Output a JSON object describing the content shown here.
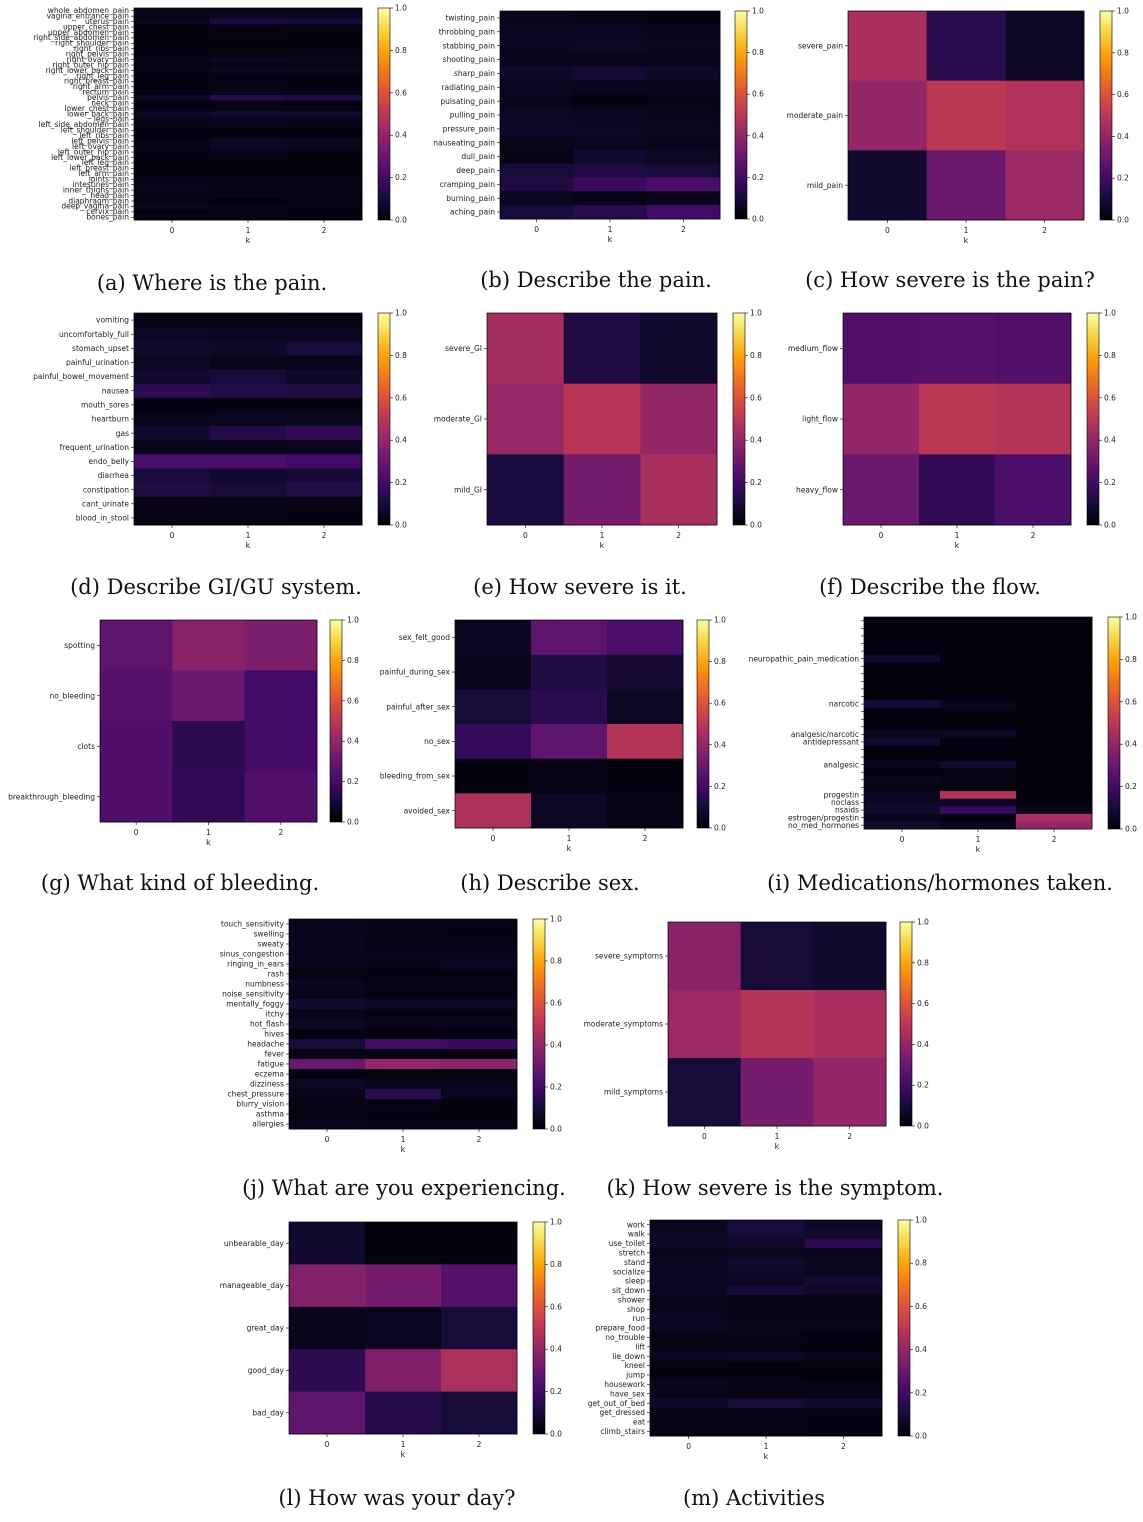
{
  "colormap": "inferno",
  "chart_data": [
    {
      "type": "heatmap",
      "caption": "(a) Where is the pain.",
      "xlabel": "k",
      "categories": [
        "0",
        "1",
        "2"
      ],
      "rows": [
        "whole_abdomen_pain",
        "vagina_entrance_pain",
        "uterus_pain",
        "upper_chest_pain",
        "upper_abdomen_pain",
        "right_side_abdomen_pain",
        "right_shoulder_pain",
        "right_ribs_pain",
        "right_pelvis_pain",
        "right_ovary_pain",
        "right_outer_hip_pain",
        "right_lower_back_pain",
        "right_leg_pain",
        "right_breast_pain",
        "right_arm_pain",
        "rectum_pain",
        "pelvis_pain",
        "neck_pain",
        "lower_chest_pain",
        "lower_back_pain",
        "legs_pain",
        "left_side_abdomen_pain",
        "left_shoulder_pain",
        "left_ribs_pain",
        "left_pelvis_pain",
        "left_ovary_pain",
        "left_outer_hip_pain",
        "left_lower_back_pain",
        "left_leg_pain",
        "left_breast_pain",
        "left_arm_pain",
        "joints_pain",
        "intestines_pain",
        "inner_thighs_pain",
        "head_pain",
        "diaphragm_pain",
        "deep_vagina_pain",
        "cervix_pain",
        "bones_pain"
      ],
      "values": [
        [
          0.04,
          0.04,
          0.03
        ],
        [
          0.03,
          0.06,
          0.05
        ],
        [
          0.05,
          0.12,
          0.1
        ],
        [
          0.02,
          0.03,
          0.02
        ],
        [
          0.02,
          0.03,
          0.02
        ],
        [
          0.02,
          0.02,
          0.02
        ],
        [
          0.02,
          0.02,
          0.02
        ],
        [
          0.02,
          0.02,
          0.02
        ],
        [
          0.02,
          0.03,
          0.03
        ],
        [
          0.03,
          0.05,
          0.04
        ],
        [
          0.02,
          0.03,
          0.03
        ],
        [
          0.03,
          0.05,
          0.05
        ],
        [
          0.02,
          0.03,
          0.02
        ],
        [
          0.02,
          0.03,
          0.02
        ],
        [
          0.02,
          0.02,
          0.02
        ],
        [
          0.03,
          0.04,
          0.03
        ],
        [
          0.06,
          0.14,
          0.12
        ],
        [
          0.02,
          0.03,
          0.02
        ],
        [
          0.03,
          0.03,
          0.03
        ],
        [
          0.06,
          0.09,
          0.08
        ],
        [
          0.04,
          0.04,
          0.04
        ],
        [
          0.03,
          0.04,
          0.03
        ],
        [
          0.02,
          0.02,
          0.02
        ],
        [
          0.02,
          0.02,
          0.02
        ],
        [
          0.04,
          0.06,
          0.05
        ],
        [
          0.03,
          0.06,
          0.05
        ],
        [
          0.02,
          0.03,
          0.02
        ],
        [
          0.02,
          0.03,
          0.02
        ],
        [
          0.02,
          0.02,
          0.02
        ],
        [
          0.02,
          0.02,
          0.02
        ],
        [
          0.02,
          0.02,
          0.02
        ],
        [
          0.03,
          0.03,
          0.03
        ],
        [
          0.04,
          0.03,
          0.03
        ],
        [
          0.04,
          0.03,
          0.02
        ],
        [
          0.03,
          0.04,
          0.03
        ],
        [
          0.02,
          0.02,
          0.02
        ],
        [
          0.05,
          0.04,
          0.03
        ],
        [
          0.02,
          0.03,
          0.02
        ],
        [
          0.03,
          0.03,
          0.02
        ]
      ]
    },
    {
      "type": "heatmap",
      "caption": "(b) Describe the pain.",
      "xlabel": "k",
      "categories": [
        "0",
        "1",
        "2"
      ],
      "rows": [
        "twisting_pain",
        "throbbing_pain",
        "stabbing_pain",
        "shooting_pain",
        "sharp_pain",
        "radiating_pain",
        "pulsating_pain",
        "pulling_pain",
        "pressure_pain",
        "nauseating_pain",
        "dull_pain",
        "deep_pain",
        "cramping_pain",
        "burning_pain",
        "aching_pain"
      ],
      "values": [
        [
          0.04,
          0.03,
          0.02
        ],
        [
          0.06,
          0.05,
          0.04
        ],
        [
          0.05,
          0.06,
          0.05
        ],
        [
          0.04,
          0.04,
          0.04
        ],
        [
          0.07,
          0.09,
          0.07
        ],
        [
          0.05,
          0.04,
          0.04
        ],
        [
          0.04,
          0.02,
          0.03
        ],
        [
          0.06,
          0.05,
          0.04
        ],
        [
          0.07,
          0.06,
          0.05
        ],
        [
          0.04,
          0.05,
          0.04
        ],
        [
          0.03,
          0.08,
          0.06
        ],
        [
          0.1,
          0.12,
          0.1
        ],
        [
          0.12,
          0.18,
          0.22
        ],
        [
          0.05,
          0.03,
          0.04
        ],
        [
          0.1,
          0.14,
          0.2
        ]
      ]
    },
    {
      "type": "heatmap",
      "caption": "(c) How severe is the pain?",
      "xlabel": "k",
      "categories": [
        "0",
        "1",
        "2"
      ],
      "rows": [
        "severe_pain",
        "moderate_pain",
        "mild_pain"
      ],
      "values": [
        [
          0.45,
          0.14,
          0.06
        ],
        [
          0.4,
          0.5,
          0.47
        ],
        [
          0.08,
          0.3,
          0.42
        ]
      ]
    },
    {
      "type": "heatmap",
      "caption": "(d) Describe GI/GU system.",
      "xlabel": "k",
      "categories": [
        "0",
        "1",
        "2"
      ],
      "rows": [
        "vomiting",
        "uncomfortably_full",
        "stomach_upset",
        "painful_urination",
        "painful_bowel_movement",
        "nausea",
        "mouth_sores",
        "heartburn",
        "gas",
        "frequent_urination",
        "endo_belly",
        "diarrhea",
        "constipation",
        "cant_urinate",
        "blood_in_stool"
      ],
      "values": [
        [
          0.03,
          0.03,
          0.02
        ],
        [
          0.06,
          0.05,
          0.05
        ],
        [
          0.08,
          0.07,
          0.1
        ],
        [
          0.06,
          0.04,
          0.04
        ],
        [
          0.08,
          0.1,
          0.07
        ],
        [
          0.15,
          0.13,
          0.12
        ],
        [
          0.02,
          0.02,
          0.02
        ],
        [
          0.04,
          0.05,
          0.05
        ],
        [
          0.08,
          0.13,
          0.16
        ],
        [
          0.04,
          0.04,
          0.05
        ],
        [
          0.22,
          0.22,
          0.2
        ],
        [
          0.1,
          0.08,
          0.09
        ],
        [
          0.12,
          0.1,
          0.13
        ],
        [
          0.03,
          0.03,
          0.03
        ],
        [
          0.03,
          0.03,
          0.02
        ]
      ]
    },
    {
      "type": "heatmap",
      "caption": "(e) How severe is it.",
      "xlabel": "k",
      "categories": [
        "0",
        "1",
        "2"
      ],
      "rows": [
        "severe_GI",
        "moderate_GI",
        "mild_GI"
      ],
      "values": [
        [
          0.44,
          0.12,
          0.08
        ],
        [
          0.41,
          0.49,
          0.4
        ],
        [
          0.11,
          0.33,
          0.45
        ]
      ]
    },
    {
      "type": "heatmap",
      "caption": "(f) Describe the flow.",
      "xlabel": "k",
      "categories": [
        "0",
        "1",
        "2"
      ],
      "rows": [
        "medium_flow",
        "light_flow",
        "heavy_flow"
      ],
      "values": [
        [
          0.24,
          0.25,
          0.24
        ],
        [
          0.4,
          0.5,
          0.48
        ],
        [
          0.3,
          0.16,
          0.22
        ]
      ]
    },
    {
      "type": "heatmap",
      "caption": "(g) What kind of bleeding.",
      "xlabel": "k",
      "categories": [
        "0",
        "1",
        "2"
      ],
      "rows": [
        "spotting",
        "no_bleeding",
        "clots",
        "breakthrough_bleeding"
      ],
      "values": [
        [
          0.27,
          0.37,
          0.34
        ],
        [
          0.25,
          0.3,
          0.2
        ],
        [
          0.23,
          0.15,
          0.21
        ],
        [
          0.23,
          0.16,
          0.24
        ]
      ]
    },
    {
      "type": "heatmap",
      "caption": "(h) Describe sex.",
      "xlabel": "k",
      "categories": [
        "0",
        "1",
        "2"
      ],
      "rows": [
        "sex_felt_good",
        "painful_during_sex",
        "painful_after_sex",
        "no_sex",
        "bleeding_from_sex",
        "avoided_sex"
      ],
      "values": [
        [
          0.05,
          0.27,
          0.22
        ],
        [
          0.04,
          0.12,
          0.09
        ],
        [
          0.1,
          0.14,
          0.06
        ],
        [
          0.17,
          0.27,
          0.48
        ],
        [
          0.02,
          0.03,
          0.02
        ],
        [
          0.46,
          0.06,
          0.03
        ]
      ]
    },
    {
      "type": "heatmap",
      "caption": "(i) Medications/hormones taken.",
      "xlabel": "k",
      "categories": [
        "0",
        "1",
        "2"
      ],
      "rows": [
        "",
        "",
        "",
        "",
        "",
        "neuropathic_pain_medication",
        "",
        "",
        "",
        "",
        "",
        "narcotic",
        "",
        "",
        "",
        "analgesic/narcotic",
        "antidepressant",
        "",
        "",
        "analgesic",
        "",
        "",
        "",
        "progestin",
        "noclass",
        "nsaids",
        "estrogen/progestin",
        "no_med_hormones"
      ],
      "values": [
        [
          0.02,
          0.02,
          0.01
        ],
        [
          0.02,
          0.02,
          0.01
        ],
        [
          0.02,
          0.02,
          0.01
        ],
        [
          0.02,
          0.02,
          0.01
        ],
        [
          0.02,
          0.02,
          0.01
        ],
        [
          0.08,
          0.02,
          0.02
        ],
        [
          0.02,
          0.02,
          0.01
        ],
        [
          0.02,
          0.02,
          0.01
        ],
        [
          0.02,
          0.02,
          0.01
        ],
        [
          0.02,
          0.02,
          0.01
        ],
        [
          0.02,
          0.02,
          0.01
        ],
        [
          0.1,
          0.05,
          0.02
        ],
        [
          0.02,
          0.02,
          0.01
        ],
        [
          0.02,
          0.02,
          0.01
        ],
        [
          0.02,
          0.02,
          0.01
        ],
        [
          0.05,
          0.06,
          0.02
        ],
        [
          0.08,
          0.02,
          0.02
        ],
        [
          0.02,
          0.02,
          0.01
        ],
        [
          0.02,
          0.02,
          0.01
        ],
        [
          0.04,
          0.08,
          0.02
        ],
        [
          0.02,
          0.02,
          0.01
        ],
        [
          0.04,
          0.03,
          0.02
        ],
        [
          0.02,
          0.02,
          0.01
        ],
        [
          0.05,
          0.48,
          0.02
        ],
        [
          0.06,
          0.06,
          0.02
        ],
        [
          0.08,
          0.18,
          0.04
        ],
        [
          0.04,
          0.02,
          0.45
        ],
        [
          0.08,
          0.05,
          0.4
        ]
      ]
    },
    {
      "type": "heatmap",
      "caption": "(j) What are you experiencing.",
      "xlabel": "k",
      "categories": [
        "0",
        "1",
        "2"
      ],
      "rows": [
        "touch_sensitivity",
        "swelling",
        "sweaty",
        "sinus_congestion",
        "ringing_in_ears",
        "rash",
        "numbness",
        "noise_sensitivity",
        "mentally_foggy",
        "itchy",
        "hot_flash",
        "hives",
        "headache",
        "fever",
        "fatigue",
        "eczema",
        "dizziness",
        "chest_pressure",
        "blurry_vision",
        "asthma",
        "allergies"
      ],
      "values": [
        [
          0.04,
          0.03,
          0.03
        ],
        [
          0.04,
          0.03,
          0.02
        ],
        [
          0.05,
          0.03,
          0.03
        ],
        [
          0.04,
          0.04,
          0.04
        ],
        [
          0.04,
          0.03,
          0.05
        ],
        [
          0.02,
          0.02,
          0.02
        ],
        [
          0.05,
          0.03,
          0.03
        ],
        [
          0.04,
          0.03,
          0.03
        ],
        [
          0.08,
          0.06,
          0.06
        ],
        [
          0.04,
          0.03,
          0.03
        ],
        [
          0.06,
          0.04,
          0.04
        ],
        [
          0.02,
          0.02,
          0.02
        ],
        [
          0.1,
          0.2,
          0.18
        ],
        [
          0.03,
          0.03,
          0.02
        ],
        [
          0.3,
          0.4,
          0.38
        ],
        [
          0.02,
          0.02,
          0.02
        ],
        [
          0.06,
          0.04,
          0.04
        ],
        [
          0.04,
          0.14,
          0.05
        ],
        [
          0.03,
          0.03,
          0.02
        ],
        [
          0.02,
          0.02,
          0.02
        ],
        [
          0.04,
          0.03,
          0.03
        ]
      ]
    },
    {
      "type": "heatmap",
      "caption": "(k) How severe is the symptom.",
      "xlabel": "k",
      "categories": [
        "0",
        "1",
        "2"
      ],
      "rows": [
        "severe_symptoms",
        "moderate_symptoms",
        "mild_symptoms"
      ],
      "values": [
        [
          0.38,
          0.1,
          0.08
        ],
        [
          0.42,
          0.48,
          0.45
        ],
        [
          0.1,
          0.33,
          0.4
        ]
      ]
    },
    {
      "type": "heatmap",
      "caption": "(l) How was your day?",
      "xlabel": "k",
      "categories": [
        "0",
        "1",
        "2"
      ],
      "rows": [
        "unbearable_day",
        "manageable_day",
        "great_day",
        "good_day",
        "bad_day"
      ],
      "values": [
        [
          0.08,
          0.02,
          0.02
        ],
        [
          0.36,
          0.33,
          0.25
        ],
        [
          0.04,
          0.05,
          0.1
        ],
        [
          0.15,
          0.35,
          0.46
        ],
        [
          0.27,
          0.13,
          0.1
        ]
      ]
    },
    {
      "type": "heatmap",
      "caption": "(m) Activities",
      "xlabel": "k",
      "categories": [
        "0",
        "1",
        "2"
      ],
      "rows": [
        "work",
        "walk",
        "use_toilet",
        "stretch",
        "stand",
        "socialize",
        "sleep",
        "sit_down",
        "shower",
        "shop",
        "run",
        "prepare_food",
        "no_trouble",
        "lift",
        "lie_down",
        "kneel",
        "jump",
        "housework",
        "have_sex",
        "get_out_of_bed",
        "get_dressed",
        "eat",
        "climb_stairs"
      ],
      "values": [
        [
          0.05,
          0.1,
          0.06
        ],
        [
          0.06,
          0.1,
          0.08
        ],
        [
          0.06,
          0.08,
          0.15
        ],
        [
          0.04,
          0.05,
          0.04
        ],
        [
          0.06,
          0.08,
          0.06
        ],
        [
          0.05,
          0.07,
          0.05
        ],
        [
          0.06,
          0.06,
          0.09
        ],
        [
          0.05,
          0.1,
          0.07
        ],
        [
          0.04,
          0.03,
          0.03
        ],
        [
          0.04,
          0.03,
          0.03
        ],
        [
          0.05,
          0.03,
          0.03
        ],
        [
          0.05,
          0.04,
          0.04
        ],
        [
          0.02,
          0.03,
          0.02
        ],
        [
          0.03,
          0.02,
          0.02
        ],
        [
          0.05,
          0.06,
          0.04
        ],
        [
          0.02,
          0.02,
          0.02
        ],
        [
          0.02,
          0.02,
          0.01
        ],
        [
          0.05,
          0.03,
          0.03
        ],
        [
          0.04,
          0.03,
          0.03
        ],
        [
          0.07,
          0.1,
          0.08
        ],
        [
          0.03,
          0.03,
          0.03
        ],
        [
          0.03,
          0.03,
          0.02
        ],
        [
          0.03,
          0.03,
          0.02
        ]
      ]
    }
  ],
  "colorbar_ticks": [
    "0.0",
    "0.2",
    "0.4",
    "0.6",
    "0.8",
    "1.0"
  ]
}
